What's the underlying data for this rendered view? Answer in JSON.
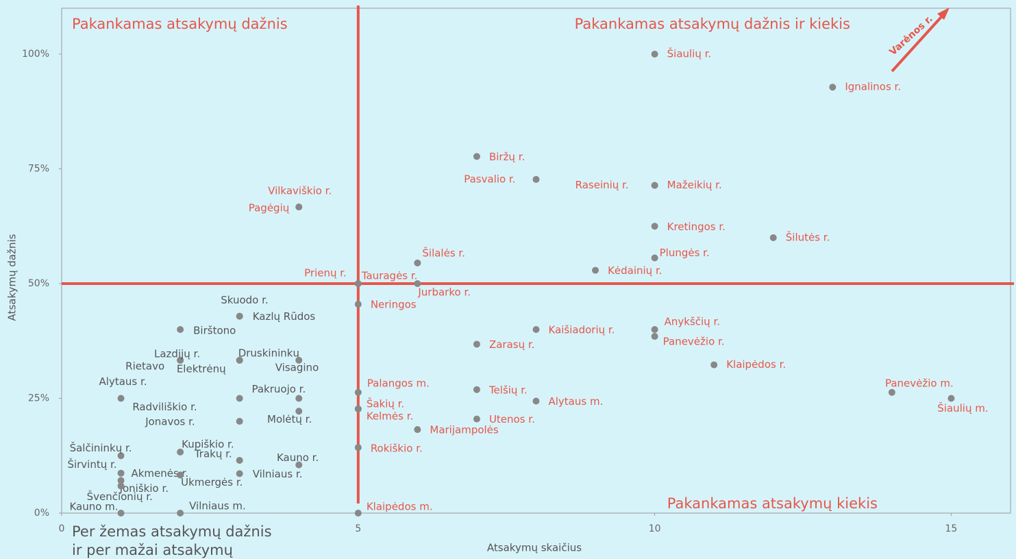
{
  "chart_data": {
    "type": "scatter",
    "xlabel": "Atsakymų skaičius",
    "ylabel": "Atsakymų dažnis",
    "xlim": [
      0,
      16
    ],
    "ylim": [
      0,
      110
    ],
    "xticks": [
      0,
      5,
      10,
      15
    ],
    "yticks": [
      {
        "value": 0,
        "label": "0%"
      },
      {
        "value": 25,
        "label": "25%"
      },
      {
        "value": 50,
        "label": "50%"
      },
      {
        "value": 75,
        "label": "75%"
      },
      {
        "value": 100,
        "label": "100%"
      }
    ],
    "reference_lines": {
      "x": 5,
      "y": 50,
      "color": "#e5574a"
    },
    "point_color": "#888888",
    "quadrant_labels": [
      "Pakankamas atsakymų dažnis",
      "Pakankamas atsakymų dažnis ir kiekis",
      "Pakankamas atsakymų kiekis",
      "Per žemas atsakymų dažnis",
      "ir per mažai atsakymų"
    ],
    "arrow_label": "Varėnos r.",
    "labels": [
      "Šiaulių r.",
      "Ignalinos r.",
      "Biržų r.",
      "Pasvalio r.",
      "Raseinių r.",
      "Mažeikių r.",
      "Kretingos r.",
      "Šilutės r.",
      "Plungės r.",
      "Šilalės r.",
      "Kėdainių r.",
      "Prienų r.",
      "Tauragės r.",
      "Jurbarko r.",
      "Neringos",
      "Kaišiadorių r.",
      "Anykščių r.",
      "Panevėžio r.",
      "Zarasų r.",
      "Klaipėdos r.",
      "Panevėžio m.",
      "Šiaulių m.",
      "Palangos m.",
      "Telšių r.",
      "Alytaus m.",
      "Šakių r.",
      "Kelmės r.",
      "Utenos r.",
      "Marijampolės",
      "Rokiškio r.",
      "Klaipėdos m.",
      "Vilkaviškio r.",
      "Pagėgių",
      "Skuodo r.",
      "Kazlų Rūdos",
      "Birštono",
      "Rietavo",
      "Lazdijų r.",
      "Druskininkų",
      "Elektrėnų",
      "Visagino",
      "Alytaus r.",
      "Radviliškio r.",
      "Pakruojo r.",
      "Jonavos r.",
      "Molėtų r.",
      "Šalčininkų r.",
      "Kupiškio r.",
      "Trakų r.",
      "Kauno r.",
      "Širvintų r.",
      "Akmenės r.",
      "Vilniaus r.",
      "Ukmergės r.",
      "Joniškio r.",
      "Švenčionių r.",
      "Kauno m.",
      "Vilniaus m."
    ],
    "x": [
      10,
      13,
      7,
      8,
      10,
      10,
      10,
      12,
      10,
      6,
      9,
      5,
      5,
      6,
      5,
      8,
      10,
      10,
      7,
      11,
      14,
      15,
      5,
      7,
      8,
      5,
      5,
      7,
      6,
      5,
      5,
      4,
      4,
      3,
      3,
      2,
      2,
      2,
      3,
      3,
      4,
      1,
      3,
      4,
      3,
      4,
      1,
      2,
      3,
      4,
      1,
      2,
      3,
      2,
      1,
      1,
      1,
      2
    ],
    "values": [
      100,
      92.8,
      77.7,
      72.7,
      71.4,
      71.4,
      62.5,
      60,
      55.6,
      54.5,
      52.9,
      50,
      50,
      50,
      45.5,
      40,
      40,
      38.5,
      36.8,
      32.3,
      26.3,
      25,
      26.3,
      26.9,
      24.4,
      22.7,
      22.7,
      20.5,
      18.2,
      14.3,
      0,
      66.7,
      66.7,
      42.9,
      42.9,
      40,
      33.3,
      33.3,
      33.3,
      33.3,
      33.3,
      25,
      25,
      25,
      20,
      22.2,
      12.5,
      13.3,
      11.5,
      10.5,
      8.7,
      8.3,
      8.6,
      8.3,
      7.1,
      5.9,
      0,
      0
    ]
  }
}
